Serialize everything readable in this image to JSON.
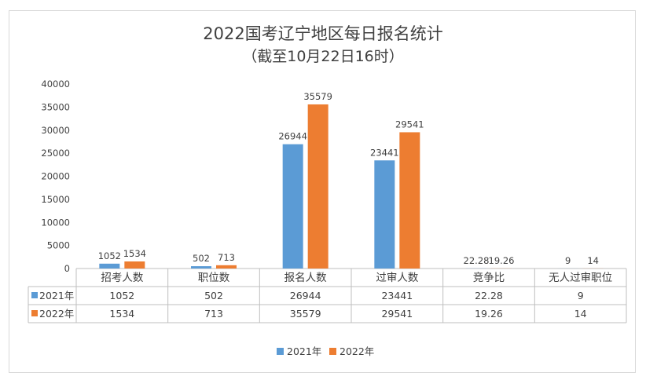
{
  "chart_data": {
    "type": "bar",
    "title": "2022国考辽宁地区每日报名统计",
    "subtitle": "（截至10月22日16时）",
    "categories": [
      "招考人数",
      "职位数",
      "报名人数",
      "过审人数",
      "竞争比",
      "无人过审职位"
    ],
    "series": [
      {
        "name": "2021年",
        "color": "#5b9bd5",
        "values": [
          1052,
          502,
          26944,
          23441,
          22.28,
          9
        ],
        "labels": [
          "1052",
          "502",
          "26944",
          "23441",
          "22.28",
          "9"
        ]
      },
      {
        "name": "2022年",
        "color": "#ed7d31",
        "values": [
          1534,
          713,
          35579,
          29541,
          19.26,
          14
        ],
        "labels": [
          "1534",
          "713",
          "35579",
          "29541",
          "19.26",
          "14"
        ]
      }
    ],
    "ylim": [
      0,
      40000
    ],
    "yticks": [
      0,
      5000,
      10000,
      15000,
      20000,
      25000,
      30000,
      35000,
      40000
    ],
    "grid": false,
    "legend": "bottom",
    "data_table": true
  }
}
